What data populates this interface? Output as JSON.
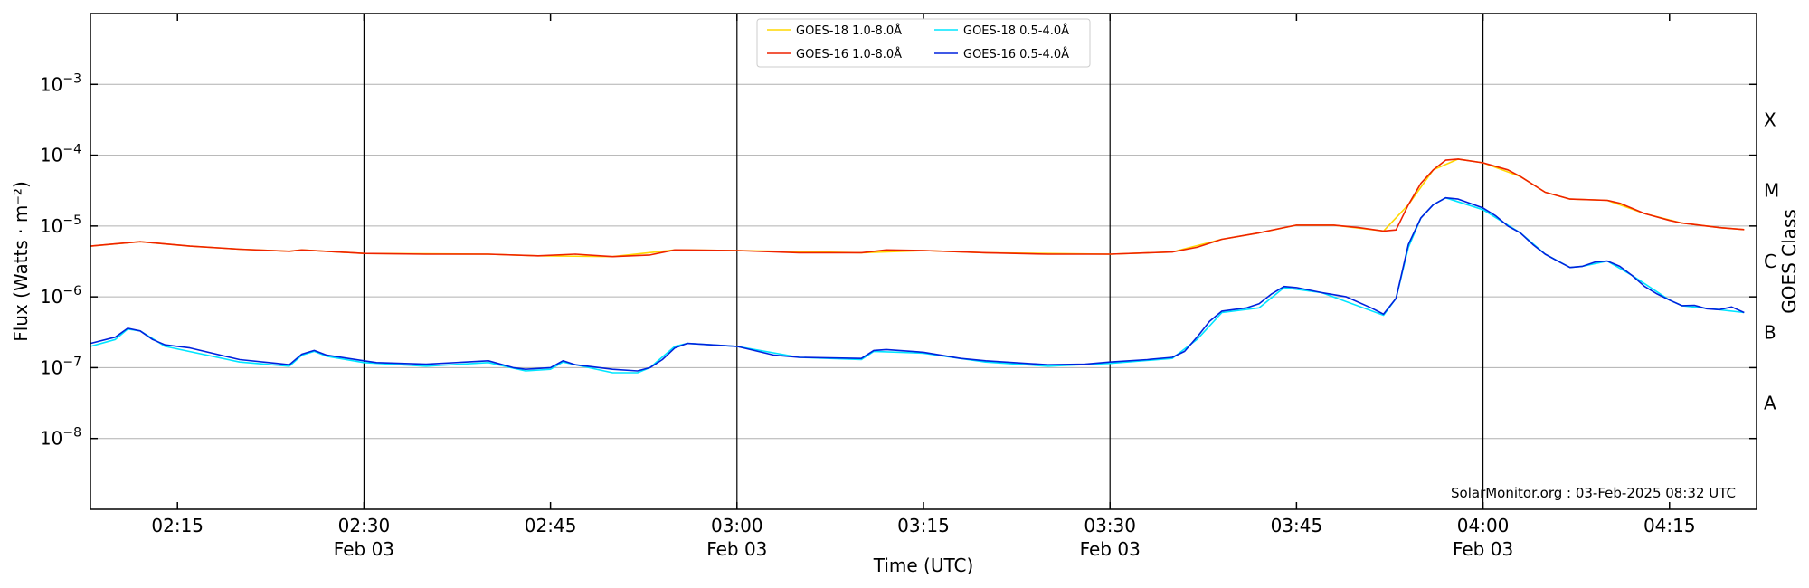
{
  "chart_data": {
    "type": "line",
    "title": "",
    "xlabel": "Time (UTC)",
    "ylabel": "Flux (Watts · m⁻²)",
    "ylabel_right": "GOES Class",
    "y_scale": "log",
    "ylim": [
      1e-09,
      0.01
    ],
    "xlim": [
      "02:08",
      "04:22"
    ],
    "y_ticks": [
      {
        "value": 1e-08,
        "base": "10",
        "exp": "−8"
      },
      {
        "value": 1e-07,
        "base": "10",
        "exp": "−7"
      },
      {
        "value": 1e-06,
        "base": "10",
        "exp": "−6"
      },
      {
        "value": 1e-05,
        "base": "10",
        "exp": "−5"
      },
      {
        "value": 0.0001,
        "base": "10",
        "exp": "−4"
      },
      {
        "value": 0.001,
        "base": "10",
        "exp": "−3"
      }
    ],
    "x_ticks": [
      {
        "time": "02:15",
        "label": "02:15",
        "sublabel": ""
      },
      {
        "time": "02:30",
        "label": "02:30",
        "sublabel": "Feb 03"
      },
      {
        "time": "02:45",
        "label": "02:45",
        "sublabel": ""
      },
      {
        "time": "03:00",
        "label": "03:00",
        "sublabel": "Feb 03"
      },
      {
        "time": "03:15",
        "label": "03:15",
        "sublabel": ""
      },
      {
        "time": "03:30",
        "label": "03:30",
        "sublabel": "Feb 03"
      },
      {
        "time": "03:45",
        "label": "03:45",
        "sublabel": ""
      },
      {
        "time": "04:00",
        "label": "04:00",
        "sublabel": "Feb 03"
      },
      {
        "time": "04:15",
        "label": "04:15",
        "sublabel": ""
      }
    ],
    "vertical_lines": [
      "02:30",
      "03:00",
      "03:30",
      "04:00"
    ],
    "goes_classes": [
      {
        "label": "A",
        "value": 3.16e-08
      },
      {
        "label": "B",
        "value": 3.16e-07
      },
      {
        "label": "C",
        "value": 3.16e-06
      },
      {
        "label": "M",
        "value": 3.16e-05
      },
      {
        "label": "X",
        "value": 0.000316
      }
    ],
    "grid": "horizontal",
    "legend_position": "top-center",
    "annotation": "SolarMonitor.org : 03-Feb-2025 08:32 UTC",
    "series": [
      {
        "name": "GOES-18 1.0-8.0Å",
        "color": "#ffd700",
        "points": [
          [
            "02:08",
            5.2e-06
          ],
          [
            "02:12",
            6e-06
          ],
          [
            "02:16",
            5.2e-06
          ],
          [
            "02:20",
            4.7e-06
          ],
          [
            "02:24",
            4.4e-06
          ],
          [
            "02:25",
            4.6e-06
          ],
          [
            "02:30",
            4.1e-06
          ],
          [
            "02:40",
            4e-06
          ],
          [
            "02:44",
            3.8e-06
          ],
          [
            "02:50",
            3.7e-06
          ],
          [
            "02:55",
            4.6e-06
          ],
          [
            "03:00",
            4.5e-06
          ],
          [
            "03:10",
            4.2e-06
          ],
          [
            "03:15",
            4.5e-06
          ],
          [
            "03:20",
            4.2e-06
          ],
          [
            "03:30",
            4e-06
          ],
          [
            "03:35",
            4.3e-06
          ],
          [
            "03:39",
            6.5e-06
          ],
          [
            "03:42",
            8e-06
          ],
          [
            "03:45",
            1.03e-05
          ],
          [
            "03:48",
            1.03e-05
          ],
          [
            "03:52",
            8.5e-06
          ],
          [
            "03:54",
            2e-05
          ],
          [
            "03:56",
            6.2e-05
          ],
          [
            "03:58",
            8.8e-05
          ],
          [
            "04:00",
            7.8e-05
          ],
          [
            "04:03",
            5e-05
          ],
          [
            "04:05",
            3e-05
          ],
          [
            "04:07",
            2.4e-05
          ],
          [
            "04:10",
            2.3e-05
          ],
          [
            "04:13",
            1.5e-05
          ],
          [
            "04:16",
            1.1e-05
          ],
          [
            "04:19",
            9.5e-06
          ],
          [
            "04:21",
            8.9e-06
          ]
        ]
      },
      {
        "name": "GOES-16 1.0-8.0Å",
        "color": "#ee2200",
        "points": [
          [
            "02:08",
            5.2e-06
          ],
          [
            "02:10",
            5.6e-06
          ],
          [
            "02:12",
            6e-06
          ],
          [
            "02:16",
            5.2e-06
          ],
          [
            "02:20",
            4.7e-06
          ],
          [
            "02:24",
            4.4e-06
          ],
          [
            "02:25",
            4.6e-06
          ],
          [
            "02:30",
            4.1e-06
          ],
          [
            "02:35",
            4e-06
          ],
          [
            "02:40",
            4e-06
          ],
          [
            "02:44",
            3.8e-06
          ],
          [
            "02:47",
            4e-06
          ],
          [
            "02:50",
            3.7e-06
          ],
          [
            "02:53",
            3.9e-06
          ],
          [
            "02:55",
            4.6e-06
          ],
          [
            "03:00",
            4.5e-06
          ],
          [
            "03:05",
            4.2e-06
          ],
          [
            "03:10",
            4.2e-06
          ],
          [
            "03:12",
            4.6e-06
          ],
          [
            "03:15",
            4.5e-06
          ],
          [
            "03:20",
            4.2e-06
          ],
          [
            "03:25",
            4e-06
          ],
          [
            "03:30",
            4e-06
          ],
          [
            "03:35",
            4.3e-06
          ],
          [
            "03:37",
            5e-06
          ],
          [
            "03:39",
            6.5e-06
          ],
          [
            "03:42",
            8e-06
          ],
          [
            "03:44",
            9.5e-06
          ],
          [
            "03:45",
            1.03e-05
          ],
          [
            "03:48",
            1.03e-05
          ],
          [
            "03:50",
            9.5e-06
          ],
          [
            "03:52",
            8.5e-06
          ],
          [
            "03:53",
            8.8e-06
          ],
          [
            "03:54",
            2e-05
          ],
          [
            "03:55",
            4e-05
          ],
          [
            "03:56",
            6.2e-05
          ],
          [
            "03:57",
            8.5e-05
          ],
          [
            "03:58",
            8.8e-05
          ],
          [
            "04:00",
            7.8e-05
          ],
          [
            "04:02",
            6.2e-05
          ],
          [
            "04:03",
            5e-05
          ],
          [
            "04:05",
            3e-05
          ],
          [
            "04:07",
            2.4e-05
          ],
          [
            "04:10",
            2.3e-05
          ],
          [
            "04:11",
            2.1e-05
          ],
          [
            "04:13",
            1.5e-05
          ],
          [
            "04:15",
            1.2e-05
          ],
          [
            "04:16",
            1.1e-05
          ],
          [
            "04:18",
            1e-05
          ],
          [
            "04:19",
            9.5e-06
          ],
          [
            "04:21",
            8.9e-06
          ]
        ]
      },
      {
        "name": "GOES-18 0.5-4.0Å",
        "color": "#00e5ff",
        "points": [
          [
            "02:08",
            2e-07
          ],
          [
            "02:10",
            2.5e-07
          ],
          [
            "02:11",
            3.5e-07
          ],
          [
            "02:12",
            3.3e-07
          ],
          [
            "02:14",
            2e-07
          ],
          [
            "02:20",
            1.2e-07
          ],
          [
            "02:24",
            1.05e-07
          ],
          [
            "02:25",
            1.5e-07
          ],
          [
            "02:26",
            1.7e-07
          ],
          [
            "02:27",
            1.45e-07
          ],
          [
            "02:30",
            1.18e-07
          ],
          [
            "02:35",
            1.05e-07
          ],
          [
            "02:40",
            1.18e-07
          ],
          [
            "02:43",
            9e-08
          ],
          [
            "02:45",
            9.5e-08
          ],
          [
            "02:46",
            1.2e-07
          ],
          [
            "02:50",
            8.5e-08
          ],
          [
            "02:52",
            8.5e-08
          ],
          [
            "02:53",
            1e-07
          ],
          [
            "02:55",
            2e-07
          ],
          [
            "02:56",
            2.2e-07
          ],
          [
            "03:00",
            2e-07
          ],
          [
            "03:05",
            1.4e-07
          ],
          [
            "03:10",
            1.3e-07
          ],
          [
            "03:11",
            1.7e-07
          ],
          [
            "03:15",
            1.6e-07
          ],
          [
            "03:20",
            1.2e-07
          ],
          [
            "03:25",
            1.05e-07
          ],
          [
            "03:30",
            1.15e-07
          ],
          [
            "03:35",
            1.35e-07
          ],
          [
            "03:37",
            2.5e-07
          ],
          [
            "03:39",
            6e-07
          ],
          [
            "03:42",
            7e-07
          ],
          [
            "03:44",
            1.35e-06
          ],
          [
            "03:47",
            1.15e-06
          ],
          [
            "03:52",
            5.5e-07
          ],
          [
            "03:53",
            9.5e-07
          ],
          [
            "03:54",
            5e-06
          ],
          [
            "03:55",
            1.3e-05
          ],
          [
            "03:56",
            2e-05
          ],
          [
            "03:57",
            2.5e-05
          ],
          [
            "04:00",
            1.7e-05
          ],
          [
            "04:03",
            8e-06
          ],
          [
            "04:05",
            4e-06
          ],
          [
            "04:07",
            2.6e-06
          ],
          [
            "04:08",
            2.7e-06
          ],
          [
            "04:10",
            3.2e-06
          ],
          [
            "04:12",
            2e-06
          ],
          [
            "04:15",
            9e-07
          ],
          [
            "04:16",
            7.5e-07
          ],
          [
            "04:19",
            6.6e-07
          ],
          [
            "04:21",
            6e-07
          ]
        ]
      },
      {
        "name": "GOES-16 0.5-4.0Å",
        "color": "#0022dd",
        "points": [
          [
            "02:08",
            2.2e-07
          ],
          [
            "02:10",
            2.7e-07
          ],
          [
            "02:11",
            3.6e-07
          ],
          [
            "02:12",
            3.3e-07
          ],
          [
            "02:13",
            2.5e-07
          ],
          [
            "02:14",
            2.1e-07
          ],
          [
            "02:16",
            1.9e-07
          ],
          [
            "02:20",
            1.3e-07
          ],
          [
            "02:23",
            1.15e-07
          ],
          [
            "02:24",
            1.1e-07
          ],
          [
            "02:25",
            1.55e-07
          ],
          [
            "02:26",
            1.75e-07
          ],
          [
            "02:27",
            1.5e-07
          ],
          [
            "02:30",
            1.25e-07
          ],
          [
            "02:31",
            1.18e-07
          ],
          [
            "02:35",
            1.12e-07
          ],
          [
            "02:40",
            1.25e-07
          ],
          [
            "02:42",
            1e-07
          ],
          [
            "02:43",
            9.5e-08
          ],
          [
            "02:45",
            1e-07
          ],
          [
            "02:46",
            1.25e-07
          ],
          [
            "02:47",
            1.1e-07
          ],
          [
            "02:50",
            9.5e-08
          ],
          [
            "02:52",
            9e-08
          ],
          [
            "02:53",
            1e-07
          ],
          [
            "02:54",
            1.3e-07
          ],
          [
            "02:55",
            1.9e-07
          ],
          [
            "02:56",
            2.2e-07
          ],
          [
            "03:00",
            2e-07
          ],
          [
            "03:03",
            1.5e-07
          ],
          [
            "03:05",
            1.4e-07
          ],
          [
            "03:10",
            1.35e-07
          ],
          [
            "03:11",
            1.75e-07
          ],
          [
            "03:12",
            1.8e-07
          ],
          [
            "03:15",
            1.65e-07
          ],
          [
            "03:18",
            1.35e-07
          ],
          [
            "03:20",
            1.25e-07
          ],
          [
            "03:25",
            1.1e-07
          ],
          [
            "03:28",
            1.12e-07
          ],
          [
            "03:30",
            1.2e-07
          ],
          [
            "03:33",
            1.3e-07
          ],
          [
            "03:35",
            1.4e-07
          ],
          [
            "03:36",
            1.7e-07
          ],
          [
            "03:37",
            2.7e-07
          ],
          [
            "03:38",
            4.5e-07
          ],
          [
            "03:39",
            6.3e-07
          ],
          [
            "03:41",
            7e-07
          ],
          [
            "03:42",
            8e-07
          ],
          [
            "03:43",
            1.1e-06
          ],
          [
            "03:44",
            1.4e-06
          ],
          [
            "03:45",
            1.35e-06
          ],
          [
            "03:47",
            1.15e-06
          ],
          [
            "03:49",
            1e-06
          ],
          [
            "03:51",
            7e-07
          ],
          [
            "03:52",
            5.7e-07
          ],
          [
            "03:53",
            9.5e-07
          ],
          [
            "03:54",
            5.5e-06
          ],
          [
            "03:55",
            1.3e-05
          ],
          [
            "03:56",
            2e-05
          ],
          [
            "03:57",
            2.5e-05
          ],
          [
            "03:58",
            2.4e-05
          ],
          [
            "04:00",
            1.8e-05
          ],
          [
            "04:01",
            1.4e-05
          ],
          [
            "04:02",
            1e-05
          ],
          [
            "04:03",
            8e-06
          ],
          [
            "04:04",
            5.5e-06
          ],
          [
            "04:05",
            4e-06
          ],
          [
            "04:06",
            3.2e-06
          ],
          [
            "04:07",
            2.6e-06
          ],
          [
            "04:08",
            2.7e-06
          ],
          [
            "04:09",
            3.1e-06
          ],
          [
            "04:10",
            3.2e-06
          ],
          [
            "04:11",
            2.7e-06
          ],
          [
            "04:12",
            2e-06
          ],
          [
            "04:13",
            1.4e-06
          ],
          [
            "04:14",
            1.1e-06
          ],
          [
            "04:15",
            9e-07
          ],
          [
            "04:16",
            7.5e-07
          ],
          [
            "04:17",
            7.6e-07
          ],
          [
            "04:18",
            6.8e-07
          ],
          [
            "04:19",
            6.6e-07
          ],
          [
            "04:20",
            7.2e-07
          ],
          [
            "04:21",
            6e-07
          ]
        ]
      }
    ]
  }
}
